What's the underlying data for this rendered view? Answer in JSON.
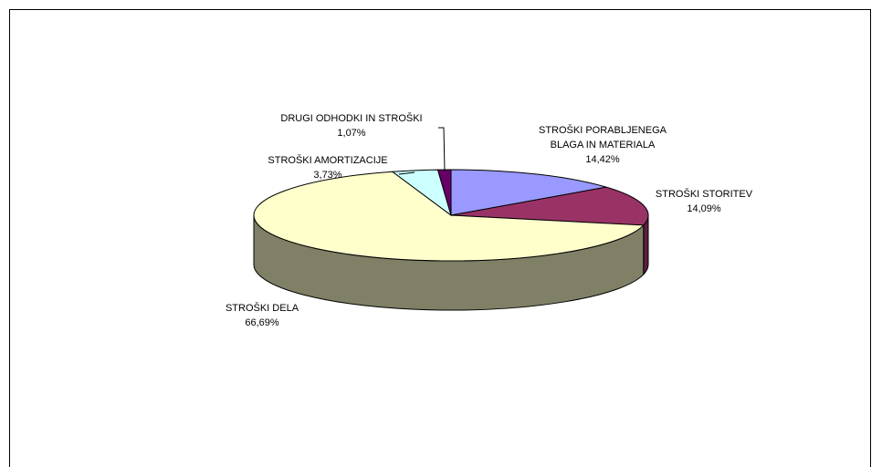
{
  "chart_data": {
    "type": "pie",
    "style": "3d-exploded-none",
    "slices": [
      {
        "label": "STROŠKI PORABLJENEGA BLAGA IN MATERIALA",
        "label_lines": [
          "STROŠKI PORABLJENEGA",
          "BLAGA IN MATERIALA"
        ],
        "value": 14.42,
        "value_text": "14,42%",
        "color": "#9999FF",
        "side_color": "#5C5C99"
      },
      {
        "label": "STROŠKI STORITEV",
        "label_lines": [
          "STROŠKI STORITEV"
        ],
        "value": 14.09,
        "value_text": "14,09%",
        "color": "#993366",
        "side_color": "#5C1F3D"
      },
      {
        "label": "STROŠKI DELA",
        "label_lines": [
          "STROŠKI DELA"
        ],
        "value": 66.69,
        "value_text": "66,69%",
        "color": "#FFFFCC",
        "side_color": "#808066"
      },
      {
        "label": "STROŠKI AMORTIZACIJE",
        "label_lines": [
          "STROŠKI AMORTIZACIJE"
        ],
        "value": 3.73,
        "value_text": "3,73%",
        "color": "#CCFFFF",
        "side_color": "#7A9999"
      },
      {
        "label": "DRUGI ODHODKI IN STROŠKI",
        "label_lines": [
          "DRUGI ODHODKI IN STROŠKI"
        ],
        "value": 1.07,
        "value_text": "1,07%",
        "color": "#660066",
        "side_color": "#3D003D"
      }
    ],
    "legend": "none",
    "title": ""
  }
}
